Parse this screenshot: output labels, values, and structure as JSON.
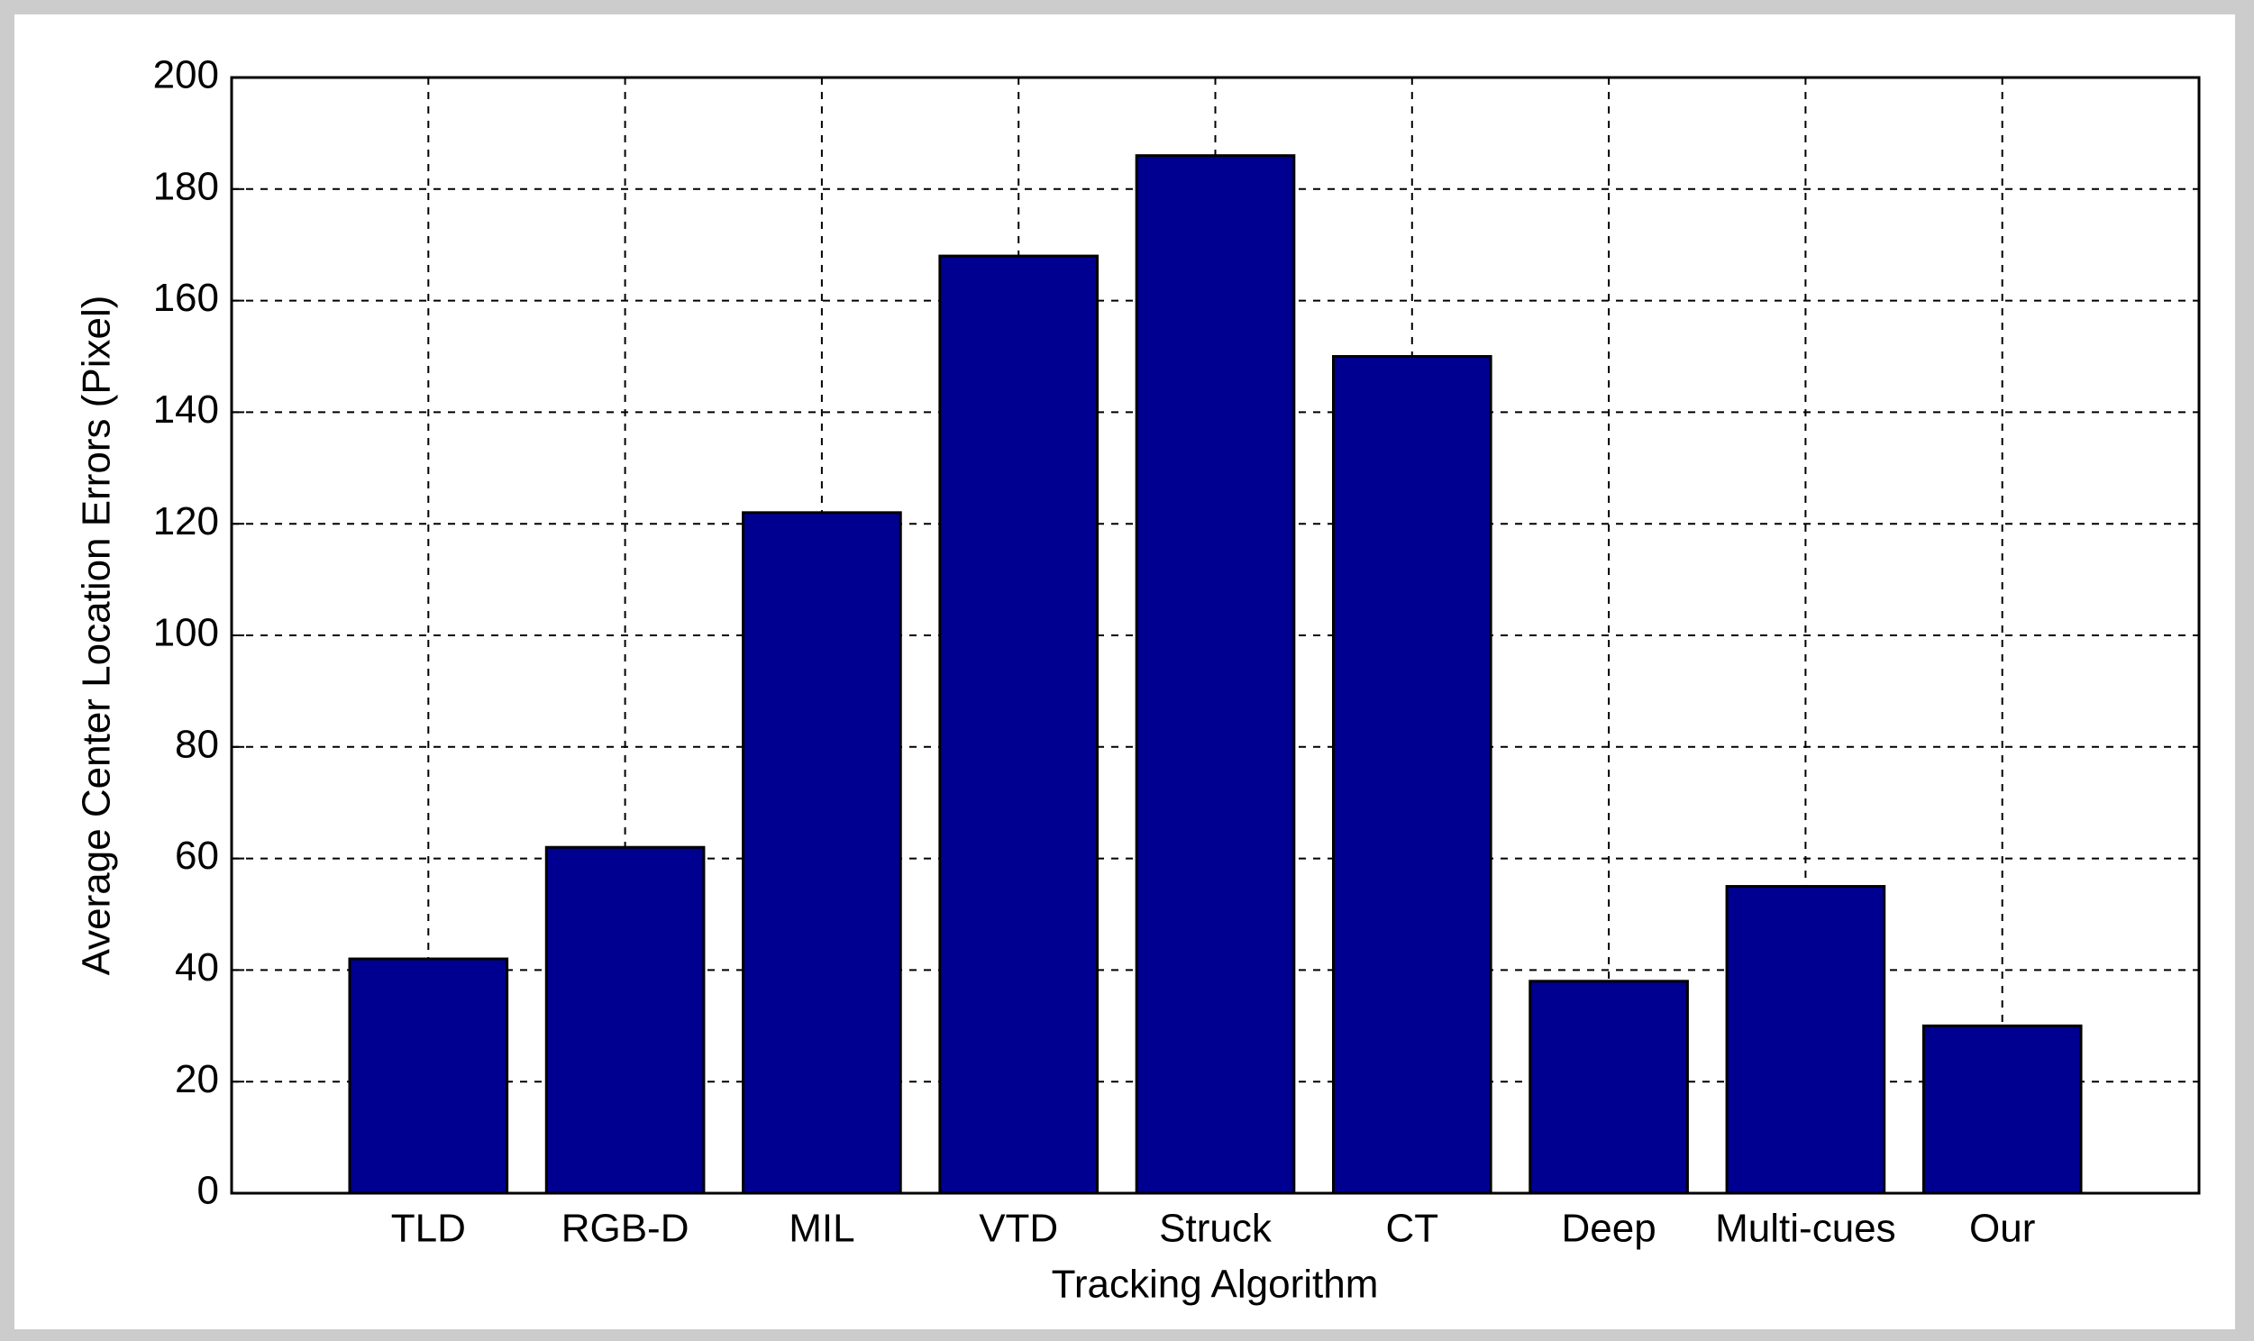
{
  "chart_data": {
    "type": "bar",
    "x_label": "Tracking Algorithm",
    "y_label": "Average Center Location Errors (Pixel)",
    "categories": [
      "TLD",
      "RGB-D",
      "MIL",
      "VTD",
      "Struck",
      "CT",
      "Deep",
      "Multi-cues",
      "Our"
    ],
    "values": [
      42,
      62,
      122,
      168,
      186,
      150,
      38,
      55,
      30
    ],
    "color": "#000090",
    "ylim": [
      0,
      200
    ],
    "yticks": [
      0,
      20,
      40,
      60,
      80,
      100,
      120,
      140,
      160,
      180,
      200
    ],
    "grid": true
  }
}
